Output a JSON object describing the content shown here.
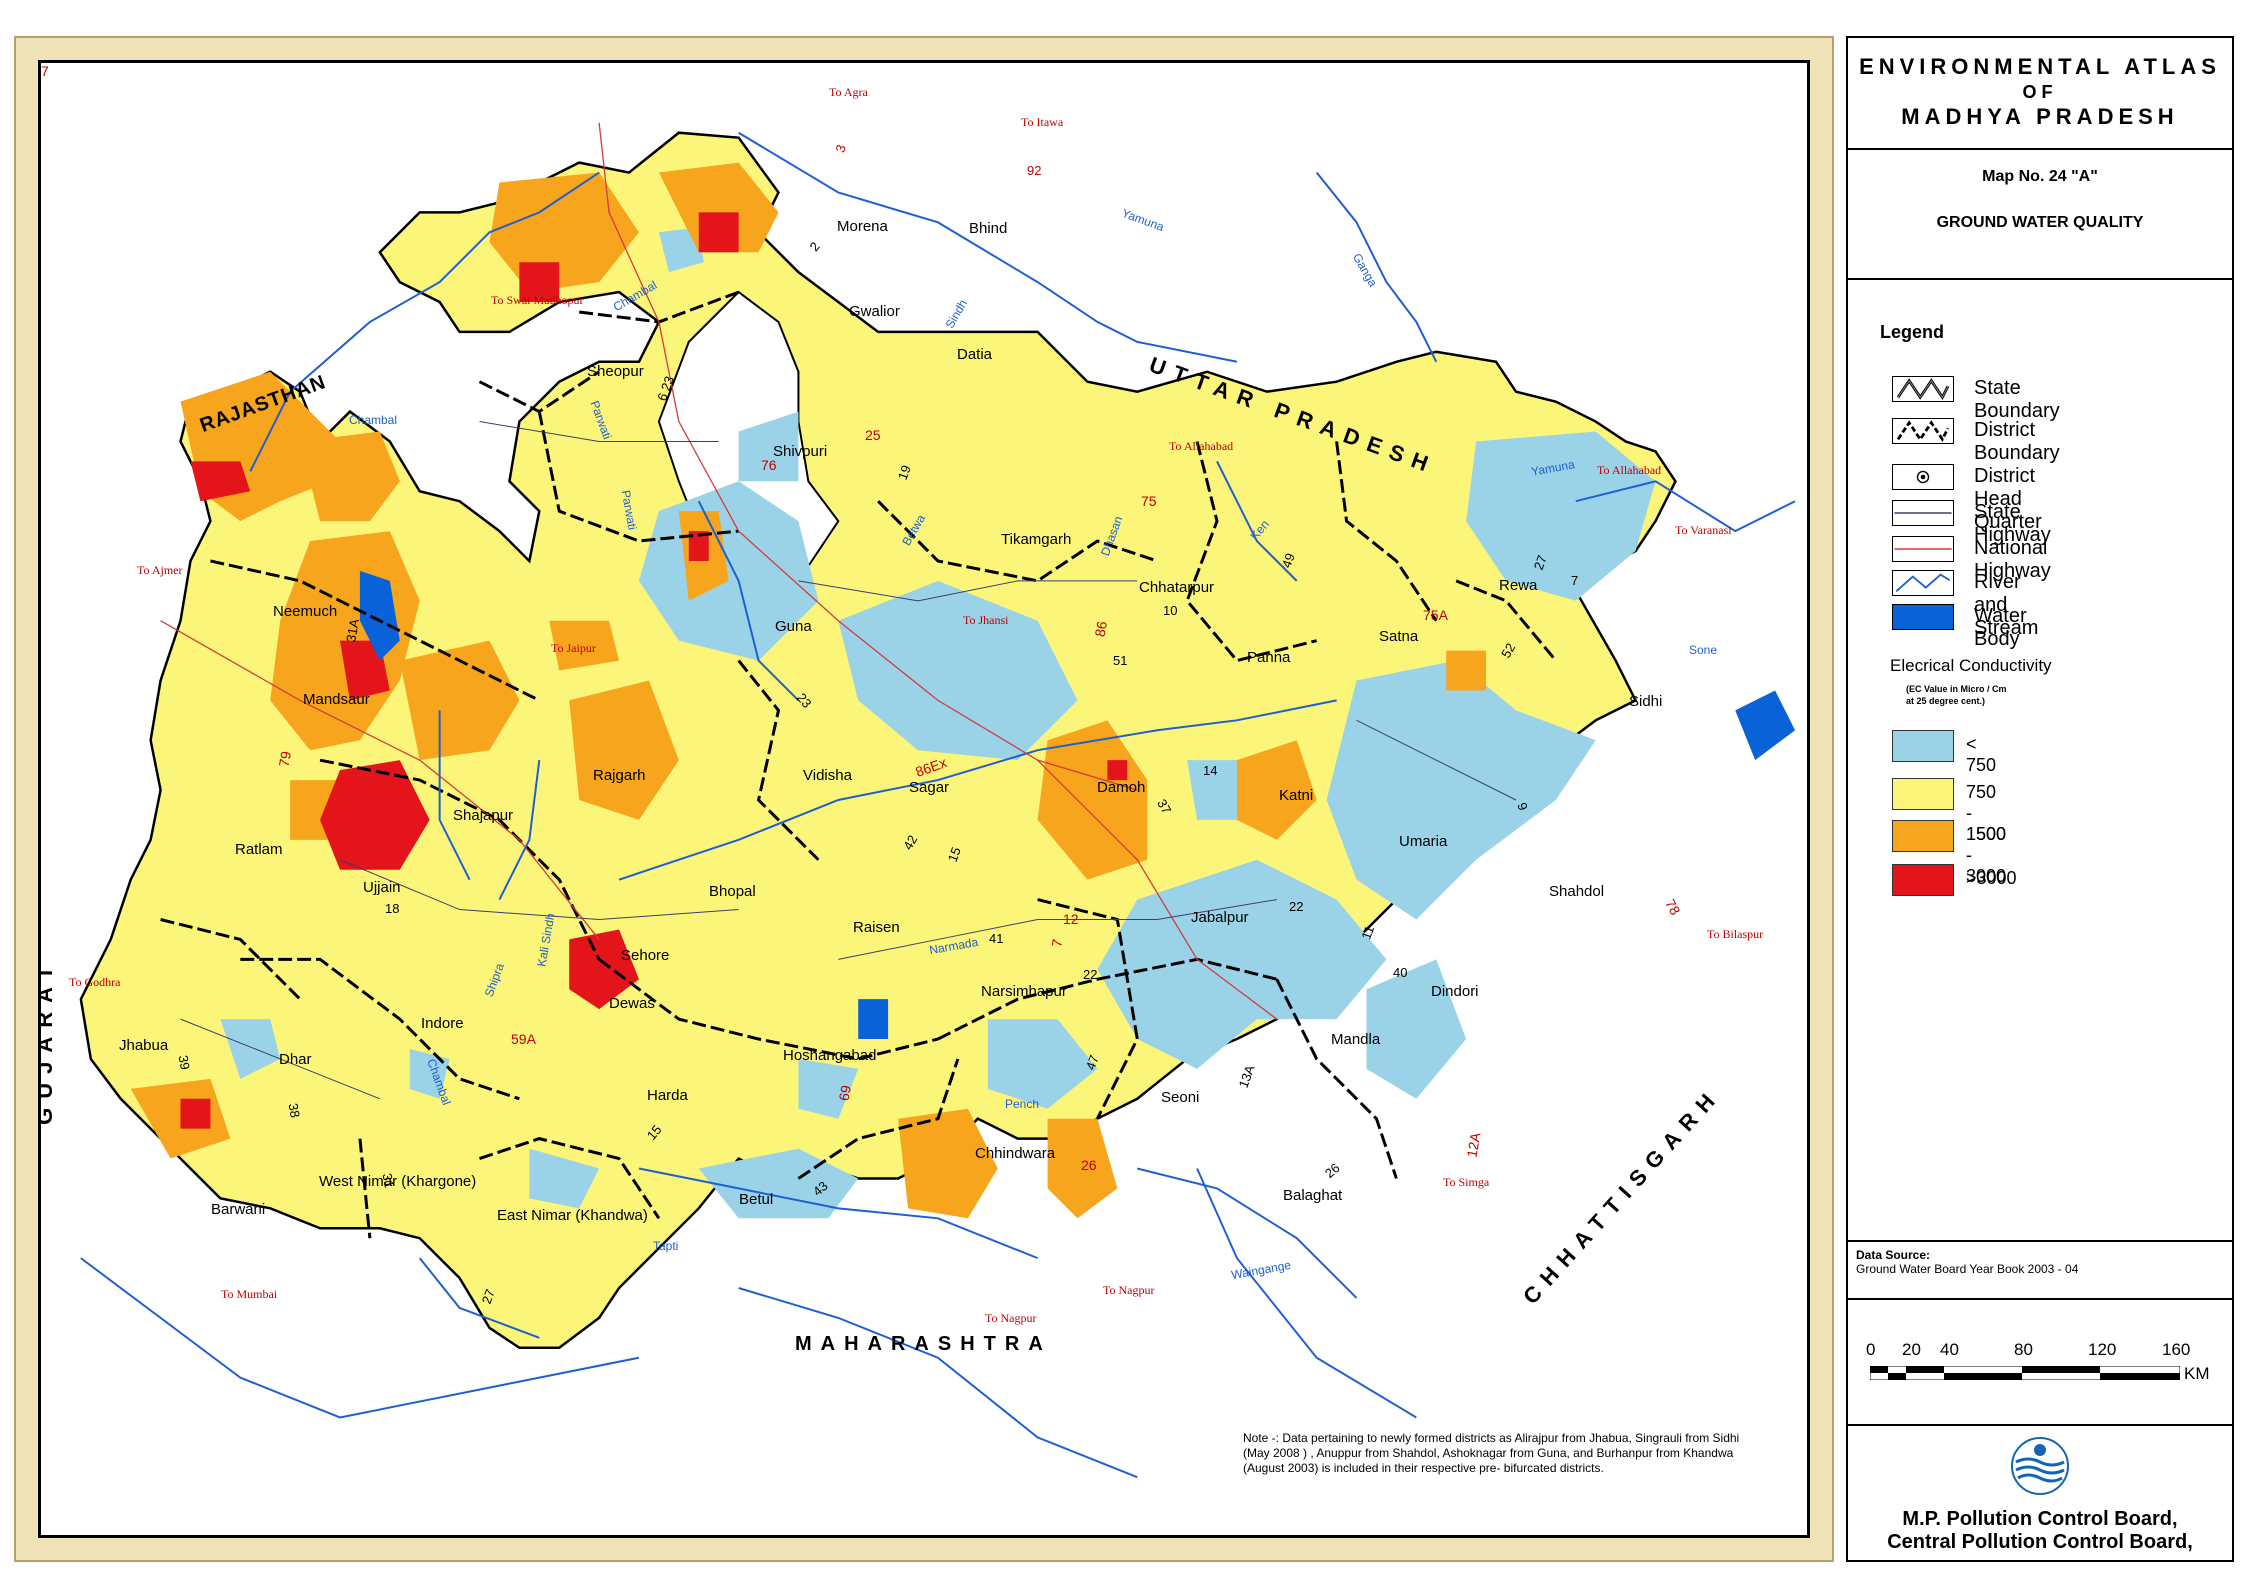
{
  "title": {
    "line1": "ENVIRONMENTAL ATLAS",
    "line2": "OF",
    "line3": "MADHYA PRADESH"
  },
  "map_number": "Map No. 24 \"A\"",
  "map_subject": "GROUND  WATER QUALITY",
  "legend": {
    "heading": "Legend",
    "items": [
      {
        "label": "State Boundary"
      },
      {
        "label": "District Boundary"
      },
      {
        "label": "District Head Quarter"
      },
      {
        "label": "State Highway"
      },
      {
        "label": "National  Highway"
      },
      {
        "label": "River and Stream"
      },
      {
        "label": "Water Body"
      }
    ],
    "ec_heading": "Elecrical  Conductivity",
    "ec_note1": "(EC Value in Micro / Cm",
    "ec_note2": "at 25 degree cent.)",
    "classes": [
      {
        "label": "< 750",
        "color": "#9ad3e8"
      },
      {
        "label": "750 - 1500",
        "color": "#fbf579"
      },
      {
        "label": "1500 - 3000",
        "color": "#f6a51c"
      },
      {
        "label": ">3000",
        "color": "#e4141b"
      }
    ]
  },
  "data_source": {
    "heading": "Data Source:",
    "text": "Ground Water Board Year Book 2003 - 04"
  },
  "scale": {
    "ticks": [
      "0",
      "20",
      "40",
      "80",
      "120",
      "160"
    ],
    "unit": "KM"
  },
  "organisations": {
    "line1": "M.P. Pollution Control Board,",
    "line2": "Central  Pollution Control Board,"
  },
  "note": {
    "line1": "Note -: Data pertaining to newly formed districts as Alirajpur from Jhabua, Singrauli from Sidhi",
    "line2": "(May 2008 ) , Anuppur  from Shahdol, Ashoknagar from Guna, and Burhanpur from Khandwa",
    "line3": "(August 2003) is included in their respective pre- bifurcated districts."
  },
  "neighbours": {
    "rajasthan": "RAJASTHAN",
    "up": "UTTAR  PRADESH",
    "gujarat": "GUJARAT",
    "chhattisgarh": "CHHATTISGARH",
    "maharashtra": "MAHARASHTRA"
  },
  "districts": {
    "morena": "Morena",
    "bhind": "Bhind",
    "gwalior": "Gwalior",
    "datia": "Datia",
    "sheopur": "Sheopur",
    "shivpuri": "Shivpuri",
    "tikamgarh": "Tikamgarh",
    "chhatarpur": "Chhatarpur",
    "panna": "Panna",
    "satna": "Satna",
    "rewa": "Rewa",
    "sidhi": "Sidhi",
    "guna": "Guna",
    "neemuch": "Neemuch",
    "mandsaur": "Mandsaur",
    "rajgarh": "Rajgarh",
    "vidisha": "Vidisha",
    "sagar": "Sagar",
    "damoh": "Damoh",
    "katni": "Katni",
    "umaria": "Umaria",
    "shahdol": "Shahdol",
    "ratlam": "Ratlam",
    "shajapur": "Shajapur",
    "ujjain": "Ujjain",
    "bhopal": "Bhopal",
    "raisen": "Raisen",
    "jabalpur": "Jabalpur",
    "sehore": "Sehore",
    "dewas": "Dewas",
    "indore": "Indore",
    "jhabua": "Jhabua",
    "dhar": "Dhar",
    "narsimhapur": "Narsimhapur",
    "hoshangabad": "Hoshangabad",
    "mandla": "Mandla",
    "dindori": "Dindori",
    "harda": "Harda",
    "seoni": "Seoni",
    "chhindwara": "Chhindwara",
    "balaghat": "Balaghat",
    "betul": "Betul",
    "west_nimar": "West Nimar (Khargone)",
    "east_nimar": "East Nimar (Khandwa)",
    "barwani": "Barwani"
  },
  "routes": {
    "agra": "To Agra",
    "itawa": "To Itawa",
    "swai": "To Swai Madhopur",
    "allahabad1": "To Allahabad",
    "allahabad2": "To Allahabad",
    "varanasi": "To Varanasi",
    "ajmer": "To Ajmer",
    "jaipur": "To Jaipur",
    "jhansi": "To  Jhansi",
    "godhra": "To Godhra",
    "bilaspur": "To  Bilaspur",
    "simga": "To  Simga",
    "mumbai": "To Mumbai",
    "nagpur1": "To Nagpur",
    "nagpur2": "To Nagpur"
  },
  "rivers": {
    "chambal1": "Chambal",
    "chambal2": "Chambal",
    "yamuna1": "Yamuna",
    "yamuna2": "Yamuna",
    "ganga": "Ganga",
    "sindh": "Sindh",
    "parwati1": "Parwati",
    "parwati2": "Parwati",
    "betwa": "Betwa",
    "dhasan": "Dhasan",
    "ken": "Ken",
    "sone": "Sone",
    "narmada": "Narmada",
    "kali_sindh": "Kali Sindh",
    "chambal3": "Chambal",
    "pench": "Pench",
    "wainganga": "Waingange",
    "tapti": "Tapti",
    "shipra": "Shipra"
  },
  "highway_numbers": {
    "h3": "3",
    "h92": "92",
    "h2": "2",
    "h623": "6 23",
    "h19": "19",
    "h10": "10",
    "h49": "49",
    "h7": "7",
    "h27": "27",
    "h52": "52",
    "h51": "51",
    "h23": "23",
    "h14": "14",
    "h37": "37",
    "h9": "9",
    "h42": "42",
    "h15": "15",
    "h18": "18",
    "h31a": "31A",
    "h39": "39",
    "h38": "38",
    "h31": "31",
    "h41": "41",
    "h22a": "22",
    "h22b": "22",
    "h11": "11",
    "h40": "40",
    "h47": "47",
    "h26": "26",
    "h43": "43",
    "h15b": "15",
    "h27b": "27",
    "h13a": "13A"
  },
  "nh_numbers": {
    "n25": "25",
    "n76": "76",
    "n86": "86",
    "n75": "75",
    "n7a": "7",
    "n75a": "75A",
    "n79": "79",
    "n86a": "86Ex",
    "n12": "12",
    "n59a": "59A",
    "n69": "69",
    "n7b": "7",
    "n12a": "12A",
    "n78": "78",
    "n26": "26",
    "n3": "3"
  }
}
